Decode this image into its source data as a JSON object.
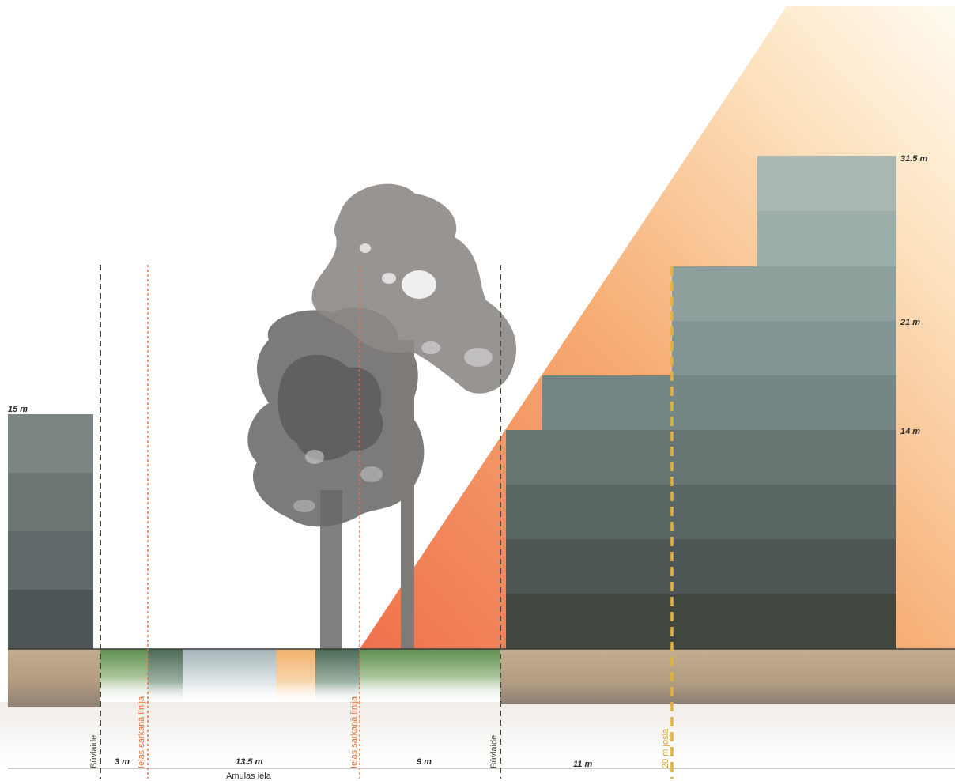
{
  "heights": {
    "left_building": "15 m",
    "top": "31.5 m",
    "mid": "21 m",
    "low": "14 m"
  },
  "widths": {
    "w1": "3 m",
    "w2": "13.5 m",
    "w3": "9 m",
    "w4": "11 m"
  },
  "vertical_labels": {
    "buvlaide_left": "Būvlaide",
    "red_line_left": "Ielas sarkanā līnija",
    "red_line_right": "Ielas sarkanā līnija",
    "buvlaide_right": "Būvlaide",
    "zone": "20 m josla"
  },
  "street_name": "Amulas iela",
  "colors": {
    "buvlaide_line": "#3f4a35",
    "red_line": "#e8733c",
    "zone_line": "#e0b43a",
    "ground": "#c3ae8f",
    "grass": "#5f8f4e",
    "sky_wedge_light": "#fde8c8",
    "sky_wedge_dark": "#ee7448"
  }
}
